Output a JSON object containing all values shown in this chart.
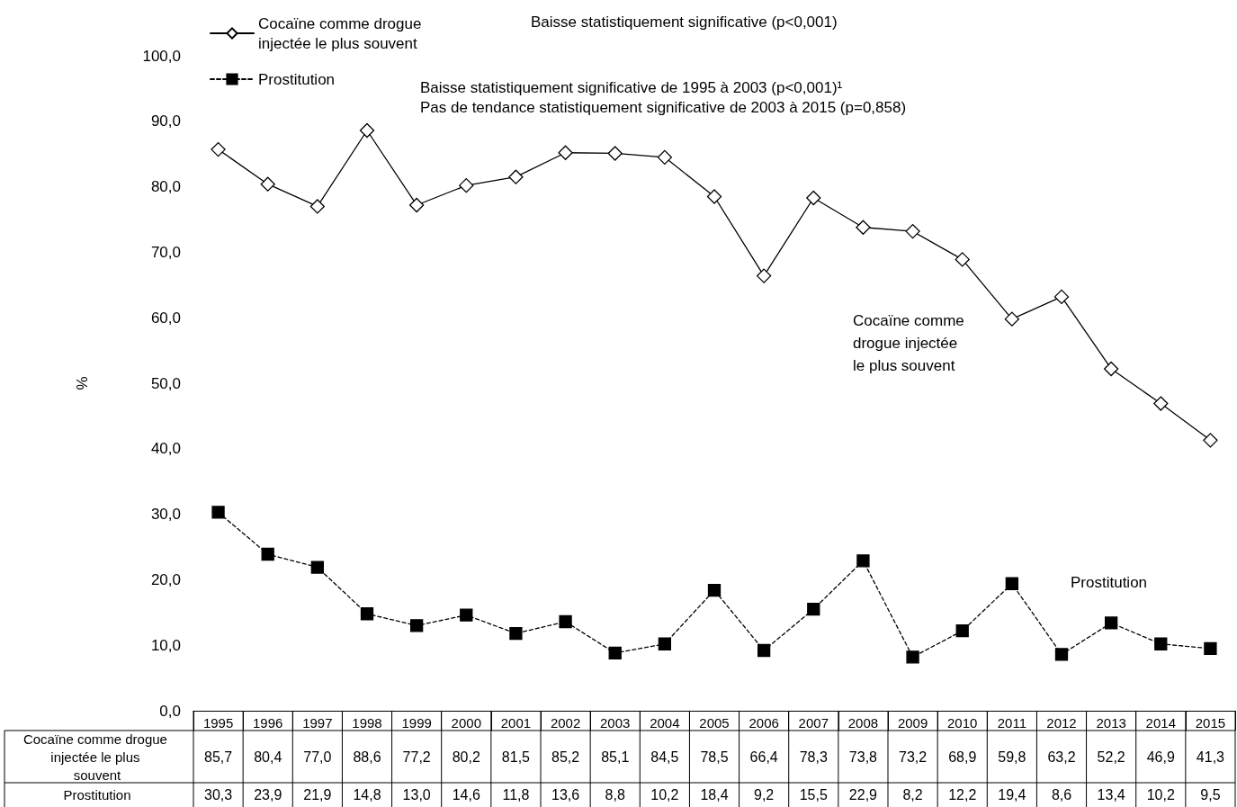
{
  "chart_data": {
    "type": "line",
    "ylabel": "%",
    "categories": [
      "1995",
      "1996",
      "1997",
      "1998",
      "1999",
      "2000",
      "2001",
      "2002",
      "2003",
      "2004",
      "2005",
      "2006",
      "2007",
      "2008",
      "2009",
      "2010",
      "2011",
      "2012",
      "2013",
      "2014",
      "2015"
    ],
    "series": [
      {
        "name": "Cocaïne comme drogue injectée le plus souvent",
        "color": "#000000",
        "marker": "diamond",
        "line_style": "solid",
        "values": [
          85.7,
          80.4,
          77.0,
          88.6,
          77.2,
          80.2,
          81.5,
          85.2,
          85.1,
          84.5,
          78.5,
          66.4,
          78.3,
          73.8,
          73.2,
          68.9,
          59.8,
          63.2,
          52.2,
          46.9,
          41.3
        ],
        "value_labels": [
          "85,7",
          "80,4",
          "77,0",
          "88,6",
          "77,2",
          "80,2",
          "81,5",
          "85,2",
          "85,1",
          "84,5",
          "78,5",
          "66,4",
          "78,3",
          "73,8",
          "73,2",
          "68,9",
          "59,8",
          "63,2",
          "52,2",
          "46,9",
          "41,3"
        ]
      },
      {
        "name": "Prostitution",
        "color": "#000000",
        "marker": "square",
        "line_style": "dashed",
        "values": [
          30.3,
          23.9,
          21.9,
          14.8,
          13.0,
          14.6,
          11.8,
          13.6,
          8.8,
          10.2,
          18.4,
          9.2,
          15.5,
          22.9,
          8.2,
          12.2,
          19.4,
          8.6,
          13.4,
          10.2,
          9.5
        ],
        "value_labels": [
          "30,3",
          "23,9",
          "21,9",
          "14,8",
          "13,0",
          "14,6",
          "11,8",
          "13,6",
          "8,8",
          "10,2",
          "18,4",
          "9,2",
          "15,5",
          "22,9",
          "8,2",
          "12,2",
          "19,4",
          "8,6",
          "13,4",
          "10,2",
          "9,5"
        ]
      }
    ],
    "ylim": [
      0,
      100
    ],
    "yticks": [
      {
        "value": 0,
        "label": "0,0"
      },
      {
        "value": 10,
        "label": "10,0"
      },
      {
        "value": 20,
        "label": "20,0"
      },
      {
        "value": 30,
        "label": "30,0"
      },
      {
        "value": 40,
        "label": "40,0"
      },
      {
        "value": 50,
        "label": "50,0"
      },
      {
        "value": 60,
        "label": "60,0"
      },
      {
        "value": 70,
        "label": "70,0"
      },
      {
        "value": 80,
        "label": "80,0"
      },
      {
        "value": 90,
        "label": "90,0"
      },
      {
        "value": 100,
        "label": "100,0"
      }
    ],
    "grid": false,
    "legend": "top left",
    "annotations": [
      "Baisse statistiquement significative (p<0,001)",
      "Baisse statistiquement significative de 1995 à 2003 (p<0,001)¹",
      "Pas de tendance statistiquement significative de 2003 à 2015 (p=0,858)",
      "Cocaïne comme drogue injectée le plus souvent",
      "Prostitution"
    ]
  }
}
